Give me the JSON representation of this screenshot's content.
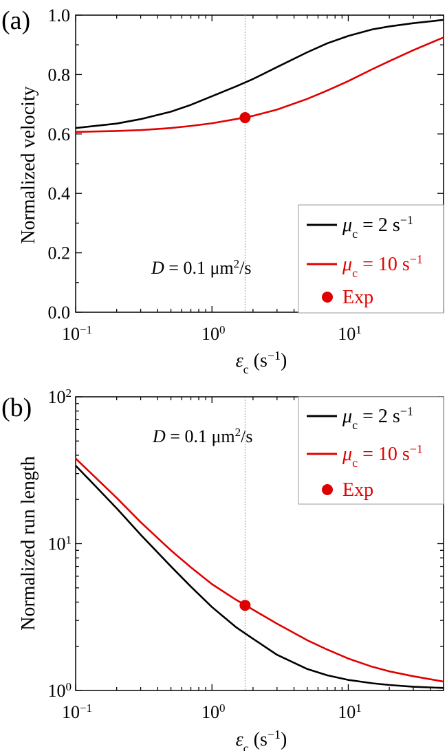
{
  "chart_data": [
    {
      "type": "line",
      "panel_label": "(a)",
      "ylabel": "Normalized velocity",
      "xlabel": "εc (s−1)",
      "x_scale": "log",
      "xlim": [
        0.1,
        50
      ],
      "ylim": [
        0.0,
        1.0
      ],
      "x_tick_labels": [
        {
          "value": 0.1,
          "mantissa": "10",
          "exponent": "-1"
        },
        {
          "value": 1,
          "mantissa": "10",
          "exponent": "0"
        },
        {
          "value": 10,
          "mantissa": "10",
          "exponent": "1"
        }
      ],
      "y_tick_labels": [
        "0.0",
        "0.2",
        "0.4",
        "0.6",
        "0.8",
        "1.0"
      ],
      "y_ticks": [
        0.0,
        0.2,
        0.4,
        0.6,
        0.8,
        1.0
      ],
      "annotation": "D = 0.1 μm2/s",
      "vertical_guide_x": 1.75,
      "legend_position": "bottom-right",
      "series": [
        {
          "name": "μc = 2 s−1",
          "color": "#000000",
          "x": [
            0.1,
            0.2,
            0.3,
            0.5,
            0.7,
            1.0,
            1.5,
            2.0,
            3.0,
            5.0,
            7.0,
            10,
            15,
            20,
            30,
            50
          ],
          "y": [
            0.62,
            0.635,
            0.65,
            0.675,
            0.698,
            0.727,
            0.76,
            0.785,
            0.825,
            0.875,
            0.905,
            0.93,
            0.952,
            0.962,
            0.973,
            0.984
          ]
        },
        {
          "name": "μc = 10 s−1",
          "color": "#e00000",
          "x": [
            0.1,
            0.2,
            0.3,
            0.5,
            0.7,
            1.0,
            1.5,
            2.0,
            3.0,
            5.0,
            7.0,
            10,
            15,
            20,
            30,
            50
          ],
          "y": [
            0.607,
            0.61,
            0.613,
            0.62,
            0.627,
            0.636,
            0.65,
            0.661,
            0.682,
            0.718,
            0.746,
            0.778,
            0.818,
            0.845,
            0.882,
            0.925
          ]
        }
      ],
      "points": [
        {
          "name": "Exp",
          "x": 1.75,
          "y": 0.655,
          "color": "#e00000"
        }
      ]
    },
    {
      "type": "line",
      "panel_label": "(b)",
      "ylabel": "Normalized run length",
      "xlabel": "εc (s−1)",
      "x_scale": "log",
      "y_scale": "log",
      "xlim": [
        0.1,
        50
      ],
      "ylim": [
        1,
        100
      ],
      "x_tick_labels": [
        {
          "value": 0.1,
          "mantissa": "10",
          "exponent": "-1"
        },
        {
          "value": 1,
          "mantissa": "10",
          "exponent": "0"
        },
        {
          "value": 10,
          "mantissa": "10",
          "exponent": "1"
        }
      ],
      "y_tick_labels": [
        {
          "value": 1,
          "mantissa": "10",
          "exponent": "0"
        },
        {
          "value": 10,
          "mantissa": "10",
          "exponent": "1"
        },
        {
          "value": 100,
          "mantissa": "10",
          "exponent": "2"
        }
      ],
      "annotation": "D = 0.1 μm2/s",
      "vertical_guide_x": 1.75,
      "legend_position": "top-right",
      "series": [
        {
          "name": "μc = 2 s−1",
          "color": "#000000",
          "x": [
            0.1,
            0.15,
            0.2,
            0.3,
            0.5,
            0.7,
            1.0,
            1.5,
            2.0,
            3.0,
            5.0,
            7.0,
            10,
            15,
            20,
            30,
            50
          ],
          "y": [
            34,
            23,
            17.4,
            11.5,
            7.0,
            5.1,
            3.7,
            2.7,
            2.25,
            1.75,
            1.4,
            1.27,
            1.18,
            1.12,
            1.09,
            1.06,
            1.04
          ]
        },
        {
          "name": "μc = 10 s−1",
          "color": "#e00000",
          "x": [
            0.1,
            0.15,
            0.2,
            0.3,
            0.5,
            0.7,
            1.0,
            1.5,
            2.0,
            3.0,
            5.0,
            7.0,
            10,
            15,
            20,
            30,
            50
          ],
          "y": [
            38,
            26.5,
            20.5,
            14.0,
            9.0,
            6.9,
            5.3,
            4.15,
            3.55,
            2.85,
            2.2,
            1.9,
            1.65,
            1.45,
            1.35,
            1.25,
            1.15
          ]
        }
      ],
      "points": [
        {
          "name": "Exp",
          "x": 1.75,
          "y": 3.8,
          "color": "#e00000"
        }
      ]
    }
  ]
}
